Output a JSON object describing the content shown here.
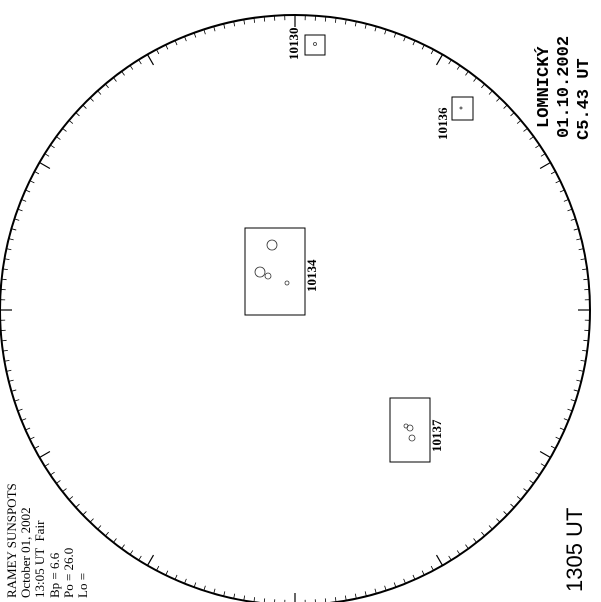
{
  "header": {
    "lines": [
      "RAMEY SUNSPOTS",
      "October 01, 2002",
      "13:05 UT  Fair",
      "Bp = 6.6",
      "Po = 26.0",
      "Lo ="
    ]
  },
  "time_label": "1305 UT",
  "observatory": {
    "lines": [
      "LOMNICKÝ",
      "01.10.2002",
      "C5.43 UT"
    ]
  },
  "regions": [
    {
      "label": "10130"
    },
    {
      "label": "10136"
    },
    {
      "label": "10134"
    },
    {
      "label": "10137"
    }
  ]
}
